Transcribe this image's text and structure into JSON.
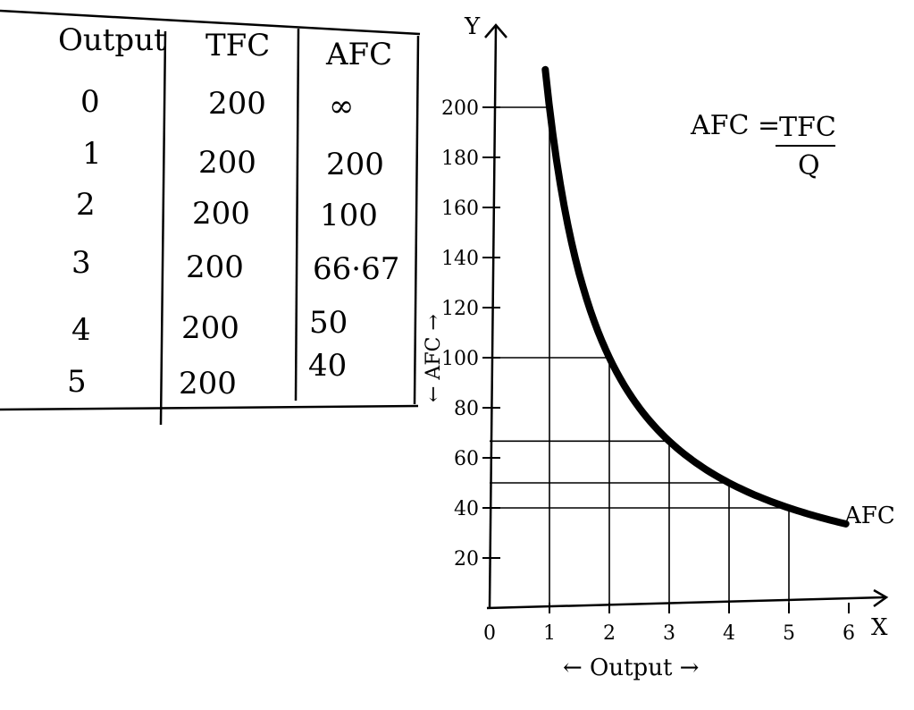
{
  "table": {
    "headers": [
      "Output",
      "TFC",
      "AFC"
    ],
    "rows": [
      [
        "0",
        "200",
        "∞"
      ],
      [
        "1",
        "200",
        "200"
      ],
      [
        "2",
        "200",
        "100"
      ],
      [
        "3",
        "200",
        "66·67"
      ],
      [
        "4",
        "200",
        "50"
      ],
      [
        "5",
        "200",
        "40"
      ]
    ]
  },
  "formula": {
    "lhs": "AFC =",
    "numerator": "TFC",
    "denominator": "Q"
  },
  "chart_data": {
    "type": "line",
    "x_axis_letter": "X",
    "y_axis_letter": "Y",
    "xlabel": "← Output →",
    "ylabel": "← AFC →",
    "x_ticks": [
      "0",
      "1",
      "2",
      "3",
      "4",
      "5",
      "6"
    ],
    "y_ticks": [
      "20",
      "40",
      "60",
      "80",
      "100",
      "120",
      "140",
      "160",
      "180",
      "200"
    ],
    "xlim": [
      0,
      6
    ],
    "ylim": [
      0,
      200
    ],
    "series": [
      {
        "name": "AFC",
        "x": [
          1,
          2,
          3,
          4,
          5
        ],
        "y": [
          200,
          100,
          66.67,
          50,
          40
        ]
      }
    ],
    "grid": false
  }
}
